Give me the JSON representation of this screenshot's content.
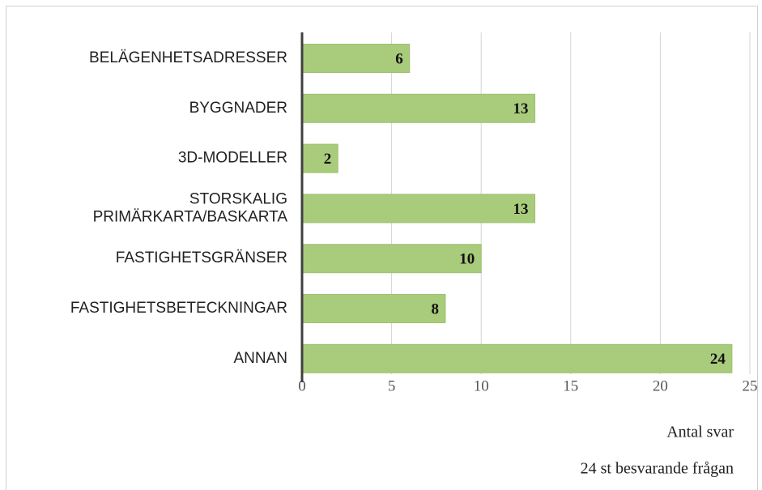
{
  "chart_data": {
    "type": "bar",
    "orientation": "horizontal",
    "categories": [
      "BELÄGENHETSADRESSER",
      "BYGGNADER",
      "3D-MODELLER",
      "STORSKALIG\nPRIMÄRKARTA/BASKARTA",
      "FASTIGHETSGRÄNSER",
      "FASTIGHETSBETECKNINGAR",
      "ANNAN"
    ],
    "values": [
      6,
      13,
      2,
      13,
      10,
      8,
      24
    ],
    "color": "#a9cb7c",
    "xlim": [
      0,
      25
    ],
    "xticks": [
      0,
      5,
      10,
      15,
      20,
      25
    ],
    "grid": true,
    "xlabel": "Antal svar",
    "annotation": "24 st besvarande frågan"
  }
}
